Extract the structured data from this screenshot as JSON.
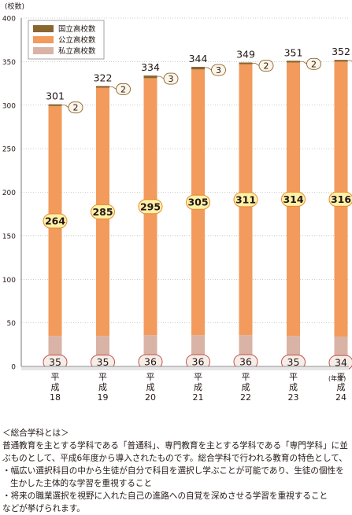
{
  "chart_data": {
    "type": "bar",
    "stacked": true,
    "unit_label": "(校数)",
    "x_unit_label": "(年度)",
    "categories": [
      [
        "平",
        "成",
        "18"
      ],
      [
        "平",
        "成",
        "19"
      ],
      [
        "平",
        "成",
        "20"
      ],
      [
        "平",
        "成",
        "21"
      ],
      [
        "平",
        "成",
        "22"
      ],
      [
        "平",
        "成",
        "23"
      ],
      [
        "平",
        "成",
        "24"
      ]
    ],
    "ylim": [
      0,
      400
    ],
    "yticks": [
      "0",
      "50",
      "100",
      "150",
      "200",
      "250",
      "300",
      "350",
      "400"
    ],
    "ytick_values": [
      0,
      50,
      100,
      150,
      200,
      250,
      300,
      350,
      400
    ],
    "grid": "horizontal dotted",
    "legend_position": "top-left",
    "series": [
      {
        "name": "国立高校数",
        "color": "#8a6530",
        "values": [
          2,
          2,
          3,
          3,
          2,
          2,
          2
        ]
      },
      {
        "name": "公立高校数",
        "color": "#f29b5c",
        "values": [
          264,
          285,
          295,
          305,
          311,
          314,
          316
        ]
      },
      {
        "name": "私立高校数",
        "color": "#d9b3a6",
        "values": [
          35,
          35,
          36,
          36,
          36,
          35,
          34
        ]
      }
    ],
    "totals": [
      301,
      322,
      334,
      344,
      349,
      351,
      352
    ],
    "label_colors": {
      "public_fill": "#fff1a8",
      "public_stroke": "#e98a2e",
      "callout_fill": "#fdf5e8",
      "callout_stroke": "#8a6530",
      "private_fill": "#f7ede8",
      "private_stroke": "#c0524a"
    }
  },
  "notes": {
    "heading": "＜総合学科とは＞",
    "line1": "普通教育を主とする学科である「普通科」、専門教育を主とする学科である「専門学科」に並",
    "line2": "ぶものとして、平成6年度から導入されたものです。総合学科で行われる教育の特色として、",
    "bullet1": "・幅広い選択科目の中から生徒が自分で科目を選択し学ぶことが可能であり、生徒の個性を生かした主体的な学習を重視すること",
    "bullet2": "・将来の職業選択を視野に入れた自己の進路への自覚を深めさせる学習を重視すること",
    "line3": "などが挙げられます。"
  }
}
